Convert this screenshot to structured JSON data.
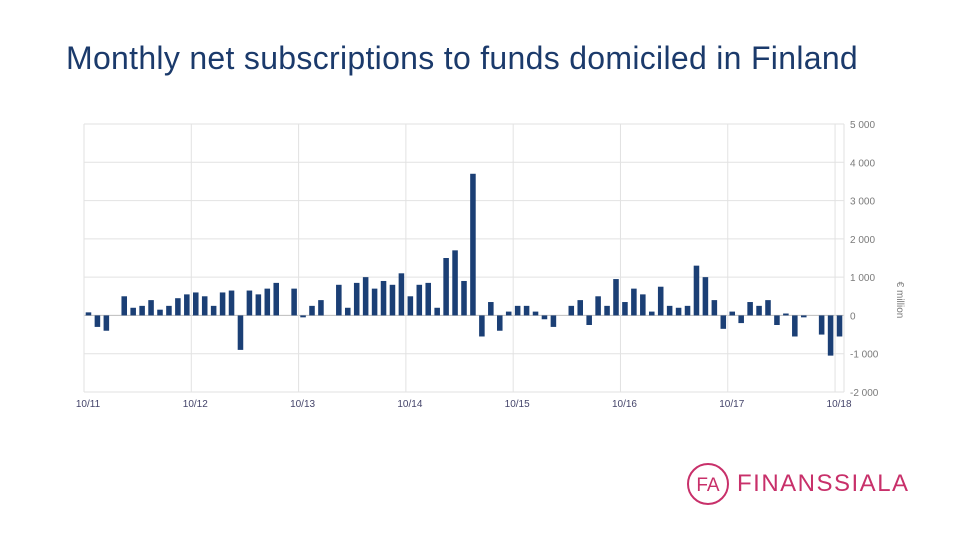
{
  "slide": {
    "title": "Monthly net subscriptions to funds domiciled in Finland"
  },
  "logo": {
    "mark_text": "FA",
    "name": "FINANSSIALA",
    "color": "#c8306a"
  },
  "chart_data": {
    "type": "bar",
    "ylabel": "€ million",
    "ylim": [
      -2000,
      5000
    ],
    "y_ticks": [
      5000,
      4000,
      3000,
      2000,
      1000,
      0,
      -1000,
      -2000
    ],
    "y_tick_labels": [
      "5 000",
      "4 000",
      "3 000",
      "2 000",
      "1 000",
      "0",
      "-1 000",
      "-2 000"
    ],
    "x_tick_labels": [
      "10/11",
      "10/12",
      "10/13",
      "10/14",
      "10/15",
      "10/16",
      "10/17",
      "10/18"
    ],
    "x_tick_index": [
      0,
      12,
      24,
      36,
      48,
      60,
      72,
      84
    ],
    "grid": true,
    "bar_color": "#1b3f75",
    "values": [
      80,
      -300,
      -400,
      0,
      500,
      200,
      250,
      400,
      150,
      250,
      450,
      550,
      600,
      500,
      250,
      600,
      650,
      -900,
      650,
      550,
      700,
      850,
      0,
      700,
      -50,
      250,
      400,
      0,
      800,
      200,
      850,
      1000,
      700,
      900,
      800,
      1100,
      500,
      800,
      850,
      200,
      1500,
      1700,
      900,
      3700,
      -550,
      350,
      -400,
      100,
      250,
      250,
      100,
      -100,
      -300,
      0,
      250,
      400,
      -250,
      500,
      250,
      950,
      350,
      700,
      550,
      100,
      750,
      250,
      200,
      250,
      1300,
      1000,
      400,
      -350,
      100,
      -200,
      350,
      250,
      400,
      -250,
      50,
      -550,
      -50,
      0,
      -500,
      -1050,
      -550
    ]
  }
}
